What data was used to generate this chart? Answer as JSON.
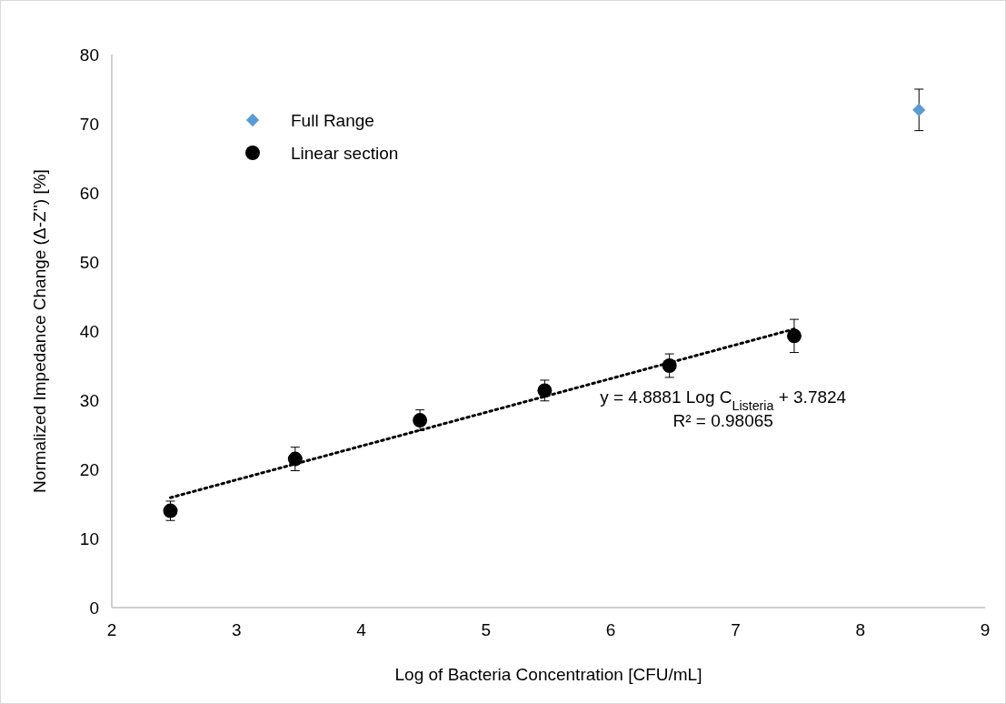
{
  "chart_data": {
    "type": "scatter",
    "xlabel": "Log of Bacteria Concentration [CFU/mL]",
    "ylabel": "Normalized Impedance Change  (Δ-Z'') [%]",
    "xlim": [
      2,
      9
    ],
    "xticks": [
      2,
      3,
      4,
      5,
      6,
      7,
      8,
      9
    ],
    "ylim": [
      0,
      80
    ],
    "yticks": [
      0,
      10,
      20,
      30,
      40,
      50,
      60,
      70,
      80
    ],
    "grid": false,
    "legend": "top left",
    "series": [
      {
        "name": "Full Range",
        "color": "#5b9bd5",
        "marker": "diamond",
        "x": [
          8.47
        ],
        "values": [
          72
        ],
        "errors": [
          3
        ]
      },
      {
        "name": "Linear section",
        "color": "#000000",
        "marker": "circle",
        "x": [
          2.47,
          3.47,
          4.47,
          5.47,
          6.47,
          7.47
        ],
        "values": [
          14,
          21.5,
          27.1,
          31.4,
          35,
          39.3
        ],
        "errors": [
          1.4,
          1.7,
          1.5,
          1.5,
          1.7,
          2.4
        ]
      },
      {
        "type": "line",
        "color": "#000000",
        "line_style": "dotted",
        "x": [
          2.47,
          7.47
        ],
        "values": [
          15.9,
          40.3
        ]
      }
    ],
    "annotations": [
      "y = 4.8881 Log C$_{Listeria}$ + 3.7824",
      "R² = 0.98065"
    ]
  }
}
